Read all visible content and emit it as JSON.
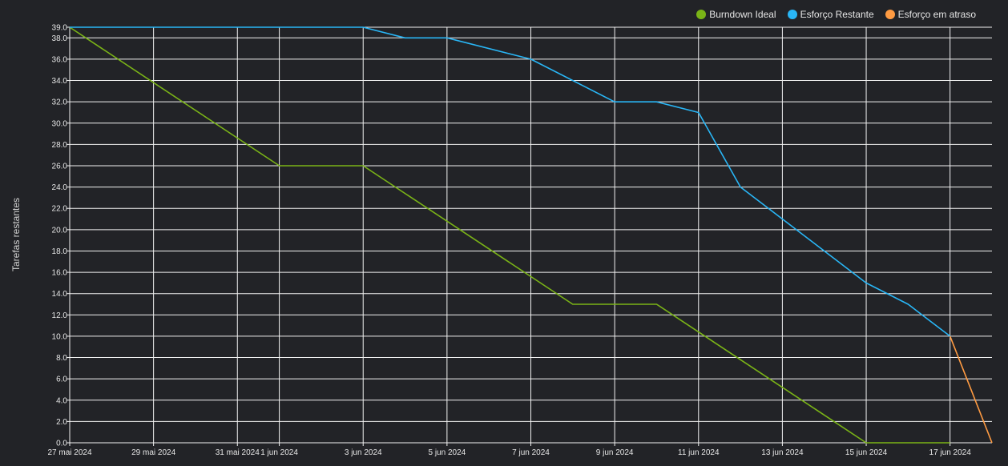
{
  "chart_data": {
    "type": "line",
    "title": "",
    "ylabel": "Tarefas restantes",
    "xlabel": "",
    "ylim": [
      0,
      39
    ],
    "y_ticks": [
      "0.0",
      "2.0",
      "4.0",
      "6.0",
      "8.0",
      "10.0",
      "12.0",
      "14.0",
      "16.0",
      "18.0",
      "20.0",
      "22.0",
      "24.0",
      "26.0",
      "28.0",
      "30.0",
      "32.0",
      "34.0",
      "36.0",
      "38.0",
      "39.0"
    ],
    "x_dates": [
      "2024-05-27",
      "2024-05-28",
      "2024-05-29",
      "2024-05-30",
      "2024-05-31",
      "2024-06-01",
      "2024-06-02",
      "2024-06-03",
      "2024-06-04",
      "2024-06-05",
      "2024-06-06",
      "2024-06-07",
      "2024-06-08",
      "2024-06-09",
      "2024-06-10",
      "2024-06-11",
      "2024-06-12",
      "2024-06-13",
      "2024-06-14",
      "2024-06-15",
      "2024-06-16",
      "2024-06-17",
      "2024-06-18"
    ],
    "x_ticks": [
      {
        "label": "27 mai 2024",
        "date": "2024-05-27"
      },
      {
        "label": "29 mai 2024",
        "date": "2024-05-29"
      },
      {
        "label": "31 mai 2024",
        "date": "2024-05-31"
      },
      {
        "label": "1 jun 2024",
        "date": "2024-06-01"
      },
      {
        "label": "3 jun 2024",
        "date": "2024-06-03"
      },
      {
        "label": "5 jun 2024",
        "date": "2024-06-05"
      },
      {
        "label": "7 jun 2024",
        "date": "2024-06-07"
      },
      {
        "label": "9 jun 2024",
        "date": "2024-06-09"
      },
      {
        "label": "11 jun 2024",
        "date": "2024-06-11"
      },
      {
        "label": "13 jun 2024",
        "date": "2024-06-13"
      },
      {
        "label": "15 jun 2024",
        "date": "2024-06-15"
      },
      {
        "label": "17 jun 2024",
        "date": "2024-06-17"
      }
    ],
    "grid": true,
    "legend_position": "top-right",
    "series": [
      {
        "name": "Burndown Ideal",
        "color": "#7ab317",
        "points": [
          [
            "2024-05-27",
            39
          ],
          [
            "2024-06-01",
            26
          ],
          [
            "2024-06-03",
            26
          ],
          [
            "2024-06-08",
            13
          ],
          [
            "2024-06-10",
            13
          ],
          [
            "2024-06-15",
            0
          ],
          [
            "2024-06-17",
            0
          ]
        ]
      },
      {
        "name": "Esforço Restante",
        "color": "#29b6f6",
        "points": [
          [
            "2024-05-27",
            39
          ],
          [
            "2024-06-03",
            39
          ],
          [
            "2024-06-04",
            38
          ],
          [
            "2024-06-05",
            38
          ],
          [
            "2024-06-07",
            36
          ],
          [
            "2024-06-09",
            32
          ],
          [
            "2024-06-10",
            32
          ],
          [
            "2024-06-11",
            31
          ],
          [
            "2024-06-12",
            24
          ],
          [
            "2024-06-15",
            15
          ],
          [
            "2024-06-16",
            13
          ],
          [
            "2024-06-17",
            10
          ]
        ]
      },
      {
        "name": "Esforço em atraso",
        "color": "#ff9b42",
        "points": [
          [
            "2024-06-17",
            10
          ],
          [
            "2024-06-18",
            0
          ]
        ]
      }
    ]
  }
}
